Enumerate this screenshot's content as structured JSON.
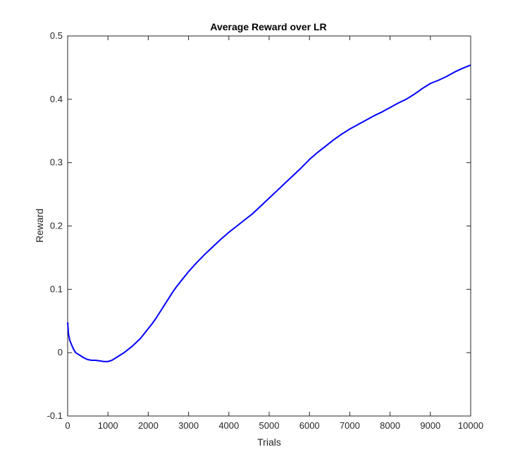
{
  "chart_data": {
    "type": "line",
    "title": "Average Reward over LR",
    "xlabel": "Trials",
    "ylabel": "Reward",
    "xlim": [
      0,
      10000
    ],
    "ylim": [
      -0.1,
      0.5
    ],
    "xticks": [
      0,
      1000,
      2000,
      3000,
      4000,
      5000,
      6000,
      7000,
      8000,
      9000,
      10000
    ],
    "yticks": [
      -0.1,
      0,
      0.1,
      0.2,
      0.3,
      0.4,
      0.5
    ],
    "xtick_labels": [
      "0",
      "1000",
      "2000",
      "3000",
      "4000",
      "5000",
      "6000",
      "7000",
      "8000",
      "9000",
      "10000"
    ],
    "ytick_labels": [
      "-0.1",
      "0",
      "0.1",
      "0.2",
      "0.3",
      "0.4",
      "0.5"
    ],
    "grid": false,
    "series": [
      {
        "color": "#0000ff",
        "x": [
          1,
          20,
          50,
          100,
          150,
          200,
          300,
          400,
          500,
          600,
          700,
          800,
          900,
          1000,
          1100,
          1200,
          1300,
          1400,
          1500,
          1600,
          1700,
          1800,
          1900,
          2000,
          2100,
          2200,
          2300,
          2400,
          2500,
          2600,
          2700,
          2800,
          2900,
          3000,
          3200,
          3400,
          3600,
          3800,
          4000,
          4200,
          4400,
          4600,
          4800,
          5000,
          5200,
          5400,
          5600,
          5800,
          6000,
          6200,
          6400,
          6600,
          6800,
          7000,
          7200,
          7400,
          7600,
          7800,
          8000,
          8200,
          8400,
          8600,
          8800,
          9000,
          9200,
          9400,
          9600,
          9800,
          10000
        ],
        "y": [
          0.048,
          0.03,
          0.02,
          0.012,
          0.005,
          0.0,
          -0.004,
          -0.008,
          -0.011,
          -0.012,
          -0.012,
          -0.013,
          -0.014,
          -0.014,
          -0.012,
          -0.008,
          -0.004,
          0.0,
          0.005,
          0.01,
          0.016,
          0.022,
          0.03,
          0.038,
          0.046,
          0.055,
          0.065,
          0.075,
          0.085,
          0.095,
          0.104,
          0.112,
          0.12,
          0.128,
          0.142,
          0.155,
          0.167,
          0.179,
          0.19,
          0.2,
          0.21,
          0.22,
          0.232,
          0.244,
          0.256,
          0.268,
          0.28,
          0.292,
          0.305,
          0.316,
          0.326,
          0.336,
          0.345,
          0.353,
          0.36,
          0.367,
          0.374,
          0.38,
          0.387,
          0.394,
          0.4,
          0.408,
          0.417,
          0.425,
          0.43,
          0.436,
          0.443,
          0.449,
          0.454
        ]
      }
    ]
  }
}
